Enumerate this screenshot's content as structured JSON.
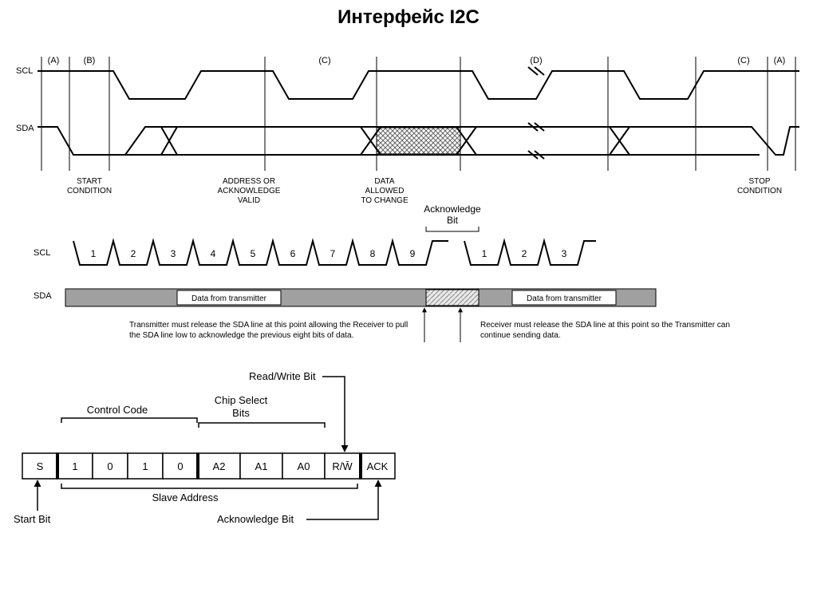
{
  "title": "Интерфейс I2C",
  "colors": {
    "line": "#000000",
    "gray_fill": "#a0a0a0",
    "hatch": "#707070",
    "bg": "#ffffff"
  },
  "timing": {
    "scl_label": "SCL",
    "sda_label": "SDA",
    "marks": {
      "a": "(A)",
      "b": "(B)",
      "c": "(C)",
      "d": "(D)"
    },
    "captions": {
      "start1": "START",
      "start2": "CONDITION",
      "addr1": "ADDRESS OR",
      "addr2": "ACKNOWLEDGE",
      "addr3": "VALID",
      "data1": "DATA",
      "data2": "ALLOWED",
      "data3": "TO CHANGE",
      "stop1": "STOP",
      "stop2": "CONDITION"
    }
  },
  "clocks": {
    "scl_label": "SCL",
    "sda_label": "SDA",
    "ack_label": "Acknowledge\nBit",
    "pulses1": [
      "1",
      "2",
      "3",
      "4",
      "5",
      "6",
      "7",
      "8",
      "9"
    ],
    "pulses2": [
      "1",
      "2",
      "3"
    ],
    "tx1": "Data from transmitter",
    "tx2": "Data from transmitter",
    "note_left": "Transmitter must release the SDA line at this point allowing the Receiver to pull the SDA line low to acknowledge the previous eight bits of data.",
    "note_right": "Receiver must release the SDA line at this point so the Transmitter can continue sending data."
  },
  "byte": {
    "rw_label": "Read/Write Bit",
    "ctrl_label": "Control Code",
    "cs_label1": "Chip Select",
    "cs_label2": "Bits",
    "slave_label": "Slave Address",
    "start_label": "Start Bit",
    "ack_label": "Acknowledge Bit",
    "cells": [
      "S",
      "1",
      "0",
      "1",
      "0",
      "A2",
      "A1",
      "A0",
      "R/W̄",
      "ACK"
    ]
  }
}
